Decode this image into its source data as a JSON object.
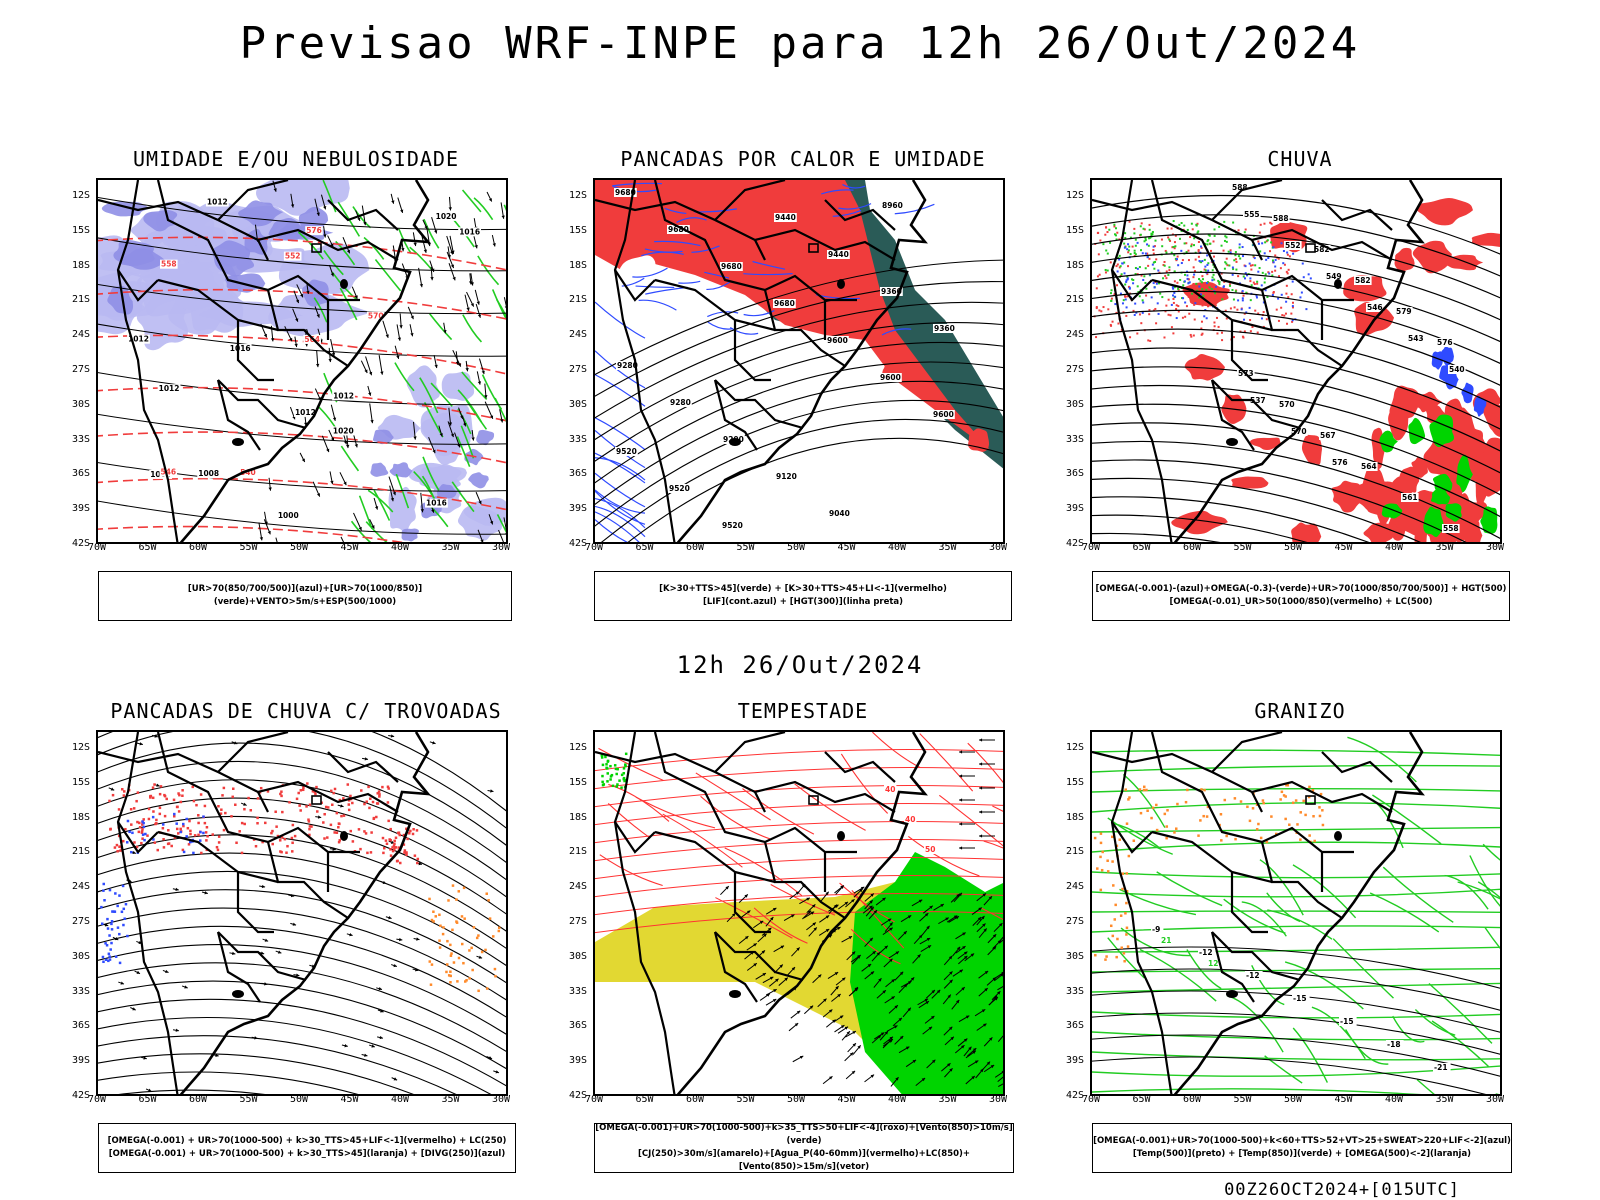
{
  "title": "Previsao WRF-INPE  para 12h 26/Out/2024",
  "mid_title": "12h 26/Out/2024",
  "footer": "00Z26OCT2024+[015UTC]",
  "lat_labels": [
    "12S",
    "15S",
    "18S",
    "21S",
    "24S",
    "27S",
    "30S",
    "33S",
    "36S",
    "39S",
    "42S"
  ],
  "lon_labels": [
    "70W",
    "65W",
    "60W",
    "55W",
    "50W",
    "45W",
    "40W",
    "35W",
    "30W"
  ],
  "colors": {
    "humid_blue": "#b9b9f2",
    "humid_blue_dark": "#8f8fe6",
    "red": "#f03c3c",
    "dark_teal": "#2a5b57",
    "green": "#22cc22",
    "bright_green": "#00d400",
    "blue": "#2f4bff",
    "orange": "#ff8a2a",
    "yellow": "#e2d832",
    "purple": "#8a2be2",
    "contour_red": "#ff3333"
  },
  "panels": [
    {
      "id": "umidade",
      "title": "UMIDADE E/OU NEBULOSIDADE",
      "legend": [
        "[UR>70(850/700/500)](azul)+[UR>70(1000/850)](verde)+VENTO>5m/s+ESP(500/1000)"
      ],
      "contour_labels": [
        "1012",
        "1012",
        "1012",
        "1012",
        "1016",
        "1016",
        "1020",
        "1020",
        "1016",
        "1012",
        "1008",
        "1004",
        "1000",
        "576",
        "570",
        "564",
        "558",
        "552",
        "546",
        "540"
      ]
    },
    {
      "id": "pancadas-calor",
      "title": "PANCADAS POR CALOR E UMIDADE",
      "legend": [
        "[K>30+TTS>45](verde) + [K>30+TTS>45+LI<-1](vermelho)",
        "[LIF](cont.azul) + [HGT(300)](linha preta)"
      ],
      "contour_labels": [
        "9680",
        "9680",
        "9680",
        "9680",
        "9600",
        "9600",
        "9600",
        "9520",
        "9520",
        "9520",
        "9440",
        "9440",
        "9360",
        "9360",
        "9280",
        "9280",
        "9200",
        "9120",
        "9040",
        "8960"
      ]
    },
    {
      "id": "chuva",
      "title": "CHUVA",
      "legend": [
        "[OMEGA(-0.001)-(azul)+OMEGA(-0.3)-(verde)+UR>70(1000/850/700/500)] + HGT(500)",
        "[OMEGA(-0.01)_UR>50(1000/850)(vermelho) + LC(500)"
      ],
      "contour_labels": [
        "588",
        "588",
        "582",
        "582",
        "579",
        "576",
        "573",
        "570",
        "567",
        "564",
        "561",
        "558",
        "555",
        "552",
        "549",
        "546",
        "543",
        "540",
        "537",
        "570",
        "576"
      ]
    },
    {
      "id": "pancadas-trovoadas",
      "title": "PANCADAS DE CHUVA C/ TROVOADAS",
      "legend": [
        "[OMEGA(-0.001) + UR>70(1000-500) + k>30_TTS>45+LIF<-1](vermelho) + LC(250)",
        "[OMEGA(-0.001) + UR>70(1000-500) + k>30_TTS>45](laranja) + [DIVG(250)](azul)"
      ],
      "contour_labels": []
    },
    {
      "id": "tempestade",
      "title": "TEMPESTADE",
      "legend": [
        "[OMEGA(-0.001)+UR>70(1000-500)+k>35_TTS>50+LIF<-4](roxo)+[Vento(850)>10m/s](verde)",
        "[CJ(250)>30m/s](amarelo)+[Agua_P(40-60mm)](vermelho)+LC(850)+[Vento(850)>15m/s](vetor)"
      ],
      "contour_labels": [
        "40",
        "40",
        "50"
      ]
    },
    {
      "id": "granizo",
      "title": "GRANIZO",
      "legend": [
        "[OMEGA(-0.001)+UR>70(1000-500)+k<60+TTS>52+VT>25+SWEAT>220+LIF<-2](azul)",
        "[Temp(500)](preto) + [Temp(850)](verde) + [OMEGA(500)<-2](laranja)"
      ],
      "contour_labels": [
        "-9",
        "-12",
        "-12",
        "-15",
        "-15",
        "-18",
        "-21",
        "21",
        "12"
      ]
    }
  ]
}
